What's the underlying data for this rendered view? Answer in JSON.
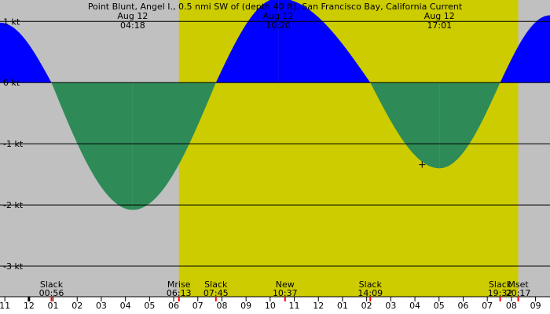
{
  "chart_data": {
    "type": "area",
    "title": "Point Blunt, Angel I., 0.5 nmi SW of (depth 40 ft), San Francisco Bay, California Current",
    "y_ticks": [
      {
        "value": 1,
        "label": "1 kt"
      },
      {
        "value": 0,
        "label": "0 kt"
      },
      {
        "value": -1,
        "label": "-1 kt"
      },
      {
        "value": -2,
        "label": "-2 kt"
      },
      {
        "value": -3,
        "label": "-3 kt"
      }
    ],
    "ylim": [
      -3.5,
      1.35
    ],
    "xlim": [
      -1.2,
      21.6
    ],
    "day_start": 6.2167,
    "day_end": 20.2833,
    "hour_ticks": [
      "11",
      "12",
      "01",
      "02",
      "03",
      "04",
      "05",
      "06",
      "07",
      "08",
      "09",
      "10",
      "11",
      "12",
      "01",
      "02",
      "03",
      "04",
      "05",
      "06",
      "07",
      "08",
      "09"
    ],
    "hour_tick_start": -1,
    "top_events": [
      {
        "date": "Aug 12",
        "time": "04:18",
        "hour": 4.3
      },
      {
        "date": "Aug 12",
        "time": "10:20",
        "hour": 10.333
      },
      {
        "date": "Aug 12",
        "time": "17:01",
        "hour": 17.017
      }
    ],
    "bottom_events": [
      {
        "label": "Slack",
        "time": "00:56",
        "hour": 0.933
      },
      {
        "label": "Mrise",
        "time": "06:13",
        "hour": 6.217
      },
      {
        "label": "Slack",
        "time": "07:45",
        "hour": 7.75
      },
      {
        "label": "New",
        "time": "10:37",
        "hour": 10.617
      },
      {
        "label": "Slack",
        "time": "14:09",
        "hour": 14.15
      },
      {
        "label": "Slack",
        "time": "19:32",
        "hour": 19.533
      },
      {
        "label": "Mset",
        "time": "20:17",
        "hour": 20.283
      }
    ],
    "red_ticks": [
      0.933,
      6.217,
      7.75,
      10.617,
      14.15,
      19.533,
      20.283
    ],
    "midnight_hour": 0,
    "current_points": [
      {
        "hour": -1.2,
        "kt": 0.98
      },
      {
        "hour": 0.933,
        "kt": 0
      },
      {
        "hour": 4.3,
        "kt": -2.08
      },
      {
        "hour": 7.75,
        "kt": 0
      },
      {
        "hour": 10.333,
        "kt": 1.38
      },
      {
        "hour": 14.15,
        "kt": 0
      },
      {
        "hour": 17.017,
        "kt": -1.4
      },
      {
        "hour": 19.533,
        "kt": 0
      },
      {
        "hour": 21.6,
        "kt": 1.1
      }
    ],
    "marker": {
      "hour": 16.3,
      "kt": -1.34
    },
    "colors": {
      "night": "#c0c0c0",
      "day": "#cccc00",
      "flood": "#0000ff",
      "ebb": "#2e8b57",
      "red_tick": "#ff0000"
    }
  }
}
